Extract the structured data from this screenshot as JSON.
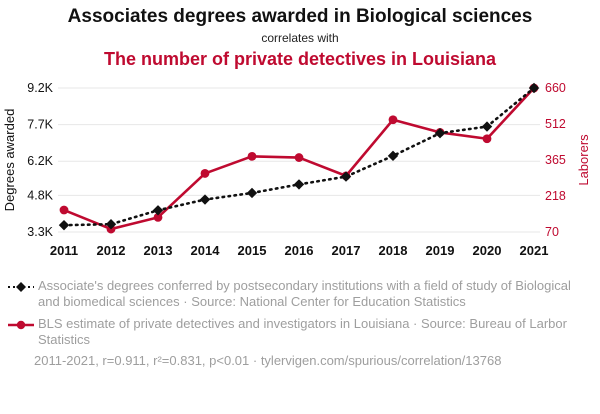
{
  "title": "Associates degrees awarded in Biological sciences",
  "subtitle": "correlates with",
  "title2": "The number of private detectives in Louisiana",
  "colors": {
    "accent_red": "#bf0a30",
    "series_black": "#111111",
    "grid": "#e7e7e7",
    "legend_gray": "#9e9e9e"
  },
  "chart_data": {
    "type": "line",
    "x": [
      "2011",
      "2012",
      "2013",
      "2014",
      "2015",
      "2016",
      "2017",
      "2018",
      "2019",
      "2020",
      "2021"
    ],
    "series": [
      {
        "name": "Degrees awarded",
        "axis": "left",
        "style": "dotted",
        "marker": "diamond",
        "values": [
          3580,
          3620,
          4190,
          4630,
          4900,
          5250,
          5570,
          6420,
          7350,
          7620,
          9200
        ]
      },
      {
        "name": "Laborers",
        "axis": "right",
        "style": "solid",
        "marker": "circle",
        "values": [
          160,
          82,
          130,
          310,
          380,
          375,
          300,
          530,
          478,
          452,
          660
        ]
      }
    ],
    "left_axis": {
      "label": "Degrees awarded",
      "ticks": [
        "3.3K",
        "4.8K",
        "6.2K",
        "7.7K",
        "9.2K"
      ],
      "tick_values": [
        3300,
        4800,
        6200,
        7700,
        9200
      ],
      "range": [
        3300,
        9200
      ]
    },
    "right_axis": {
      "label": "Laborers",
      "ticks": [
        "70",
        "218",
        "365",
        "512",
        "660"
      ],
      "tick_values": [
        70,
        218,
        365,
        512,
        660
      ],
      "range": [
        70,
        660
      ]
    },
    "grid": true,
    "legend_position": "bottom"
  },
  "legend": [
    {
      "marker": "black-diamond-dashed-line",
      "text": "Associate's degrees conferred by postsecondary institutions with a field of study of Biological and biomedical sciences · Source: National Center for Education Statistics"
    },
    {
      "marker": "red-circle-solid-line",
      "text": "BLS estimate of private detectives and investigators in Louisiana · Source: Bureau of Larbor Statistics"
    }
  ],
  "footer": "2011-2021, r=0.911, r²=0.831, p<0.01 · tylervigen.com/spurious/correlation/13768"
}
